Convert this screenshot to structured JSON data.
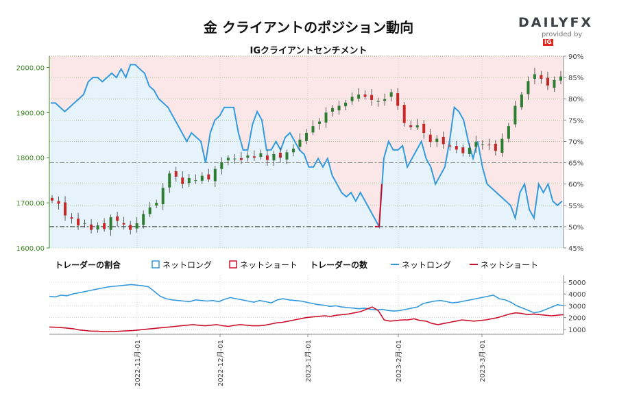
{
  "header": {
    "title": "金 クライアントのポジション動向",
    "subtitle": "IGクライアントセンチメント",
    "logo": {
      "word_left": "DAILY",
      "word_right": "FX",
      "sub": "provided by",
      "badge": "IG"
    }
  },
  "legend": {
    "ratio_title": "トレーダーの割合",
    "ratio_long": "ネットロング",
    "ratio_short": "ネットショート",
    "count_title": "トレーダーの数",
    "count_long": "ネットロング",
    "count_short": "ネットショート"
  },
  "colors": {
    "long_line": "#3399dd",
    "short_line": "#cc0f2c",
    "long_fill": "#e6f3fb",
    "short_fill": "#fbe7e7",
    "candle_up": "#2e7d32",
    "candle_down": "#c62828",
    "price_axis": "#3b8a1e"
  },
  "chart_data": [
    {
      "type": "line",
      "name": "price-sentiment",
      "candlestick_series": {
        "name": "金価格",
        "dates": [
          "2022-10-03",
          "2023-03-31"
        ],
        "close_points": [
          1705,
          1698,
          1672,
          1665,
          1650,
          1655,
          1640,
          1650,
          1642,
          1668,
          1660,
          1652,
          1640,
          1655,
          1675,
          1690,
          1700,
          1733,
          1765,
          1758,
          1742,
          1755,
          1750,
          1760,
          1752,
          1775,
          1790,
          1800,
          1798,
          1795,
          1805,
          1800,
          1810,
          1795,
          1808,
          1800,
          1812,
          1820,
          1840,
          1855,
          1870,
          1880,
          1900,
          1910,
          1915,
          1922,
          1935,
          1940,
          1935,
          1928,
          1925,
          1930,
          1945,
          1915,
          1877,
          1868,
          1872,
          1855,
          1835,
          1842,
          1830,
          1825,
          1818,
          1810,
          1822,
          1835,
          1830,
          1828,
          1815,
          1842,
          1870,
          1915,
          1940,
          1970,
          1985,
          1975,
          1960,
          1972,
          1980
        ],
        "ylim": [
          1600,
          2025
        ],
        "yticks": [
          "1600.00",
          "1700.00",
          "1800.00",
          "1900.00",
          "2000.00"
        ]
      },
      "sentiment_series": {
        "name": "ネットロング",
        "values": [
          79,
          79,
          78,
          77,
          78,
          79,
          80,
          81,
          84,
          85,
          85,
          84,
          85,
          86,
          85,
          87,
          85,
          88,
          88,
          87,
          86,
          83,
          82,
          80,
          79,
          78,
          76,
          74,
          72,
          70,
          72,
          71,
          70,
          65,
          72,
          75,
          76,
          78,
          78,
          78,
          72,
          68,
          68,
          74,
          77,
          75,
          68,
          68,
          70,
          68,
          71,
          72,
          70,
          68,
          67,
          64,
          64,
          66,
          64,
          66,
          62,
          60,
          58,
          57,
          58,
          56,
          58,
          56,
          54,
          52,
          50,
          66,
          70,
          68,
          68,
          69,
          64,
          66,
          68,
          70,
          66,
          64,
          60,
          62,
          64,
          70,
          78,
          77,
          75,
          70,
          66,
          70,
          64,
          60,
          59,
          58,
          57,
          56,
          55,
          52,
          58,
          60,
          54,
          52,
          60,
          58,
          60,
          56,
          55,
          56
        ],
        "ylim": [
          45,
          90
        ],
        "yticks": [
          "45%",
          "50%",
          "55%",
          "60%",
          "65%",
          "70%",
          "75%",
          "80%",
          "85%",
          "90%"
        ]
      }
    },
    {
      "type": "line",
      "name": "trader-counts",
      "series": [
        {
          "name": "ネットロング",
          "values": [
            3800,
            3750,
            3900,
            3850,
            4000,
            4100,
            4200,
            4300,
            4400,
            4500,
            4600,
            4650,
            4700,
            4750,
            4800,
            4750,
            4700,
            4600,
            4200,
            3800,
            3600,
            3500,
            3450,
            3400,
            3350,
            3500,
            3450,
            3400,
            3450,
            3350,
            3550,
            3700,
            3600,
            3500,
            3400,
            3300,
            3450,
            3350,
            3250,
            3500,
            3600,
            3500,
            3450,
            3400,
            3300,
            3200,
            3100,
            3050,
            2950,
            3000,
            2900,
            2850,
            2800,
            2750,
            2800,
            2700,
            2650,
            2700,
            2600,
            2550,
            2600,
            2700,
            2800,
            2900,
            3200,
            3300,
            3400,
            3450,
            3350,
            3250,
            3300,
            3400,
            3500,
            3600,
            3700,
            3800,
            3900,
            3600,
            3500,
            3300,
            3000,
            2800,
            2600,
            2400,
            2500,
            2700,
            2900,
            3100,
            3000
          ]
        },
        {
          "name": "ネットショート",
          "values": [
            1200,
            1180,
            1150,
            1100,
            1050,
            950,
            900,
            850,
            850,
            800,
            800,
            820,
            850,
            880,
            900,
            950,
            1000,
            1050,
            1100,
            1150,
            1200,
            1250,
            1300,
            1350,
            1400,
            1350,
            1300,
            1350,
            1400,
            1300,
            1250,
            1350,
            1400,
            1350,
            1300,
            1300,
            1350,
            1450,
            1550,
            1600,
            1700,
            1800,
            1900,
            2000,
            2050,
            2100,
            2150,
            2100,
            2200,
            2250,
            2300,
            2400,
            2500,
            2700,
            2900,
            2600,
            1800,
            1700,
            1750,
            1800,
            1800,
            1900,
            1750,
            1700,
            1500,
            1400,
            1500,
            1600,
            1700,
            1800,
            1750,
            1700,
            1750,
            1800,
            1900,
            2000,
            2150,
            2300,
            2400,
            2350,
            2250,
            2300,
            2250,
            2200,
            2150,
            2200,
            2250
          ]
        }
      ],
      "ylim": [
        0,
        5000
      ],
      "yticks": [
        "1000",
        "2000",
        "3000",
        "4000",
        "5000"
      ],
      "xticks": [
        "2022-11月-01",
        "2022-12月-01",
        "2023-1月-01",
        "2023-2月-01",
        "2023-3月-01"
      ]
    }
  ]
}
